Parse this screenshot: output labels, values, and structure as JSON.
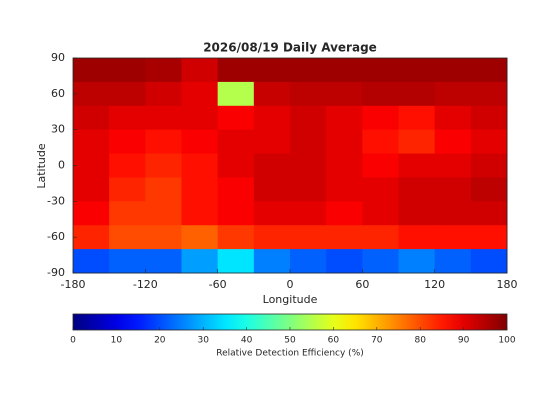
{
  "chart_data": {
    "type": "heatmap",
    "title": "2026/08/19 Daily Average",
    "x_label": "Longitude",
    "y_label": "Latitude",
    "xlim": [
      -180,
      180
    ],
    "xticks": [
      -180,
      -120,
      -60,
      0,
      60,
      120,
      180
    ],
    "ylim": [
      -90,
      90
    ],
    "yticks": [
      -90,
      -60,
      -30,
      0,
      30,
      60,
      90
    ],
    "lon_edges": [
      -180,
      -150,
      -120,
      -90,
      -60,
      -30,
      0,
      30,
      60,
      90,
      120,
      150,
      180
    ],
    "lat_edges": [
      90,
      70,
      50,
      30,
      10,
      -10,
      -30,
      -50,
      -70,
      -90
    ],
    "values": [
      [
        97,
        97,
        96,
        92,
        97,
        97,
        97,
        97,
        97,
        97,
        97,
        97
      ],
      [
        94,
        94,
        92,
        90,
        55,
        93,
        94,
        94,
        95,
        95,
        94,
        94
      ],
      [
        92,
        90,
        90,
        90,
        88,
        90,
        92,
        90,
        88,
        86,
        90,
        92
      ],
      [
        90,
        88,
        86,
        88,
        90,
        90,
        92,
        90,
        86,
        84,
        88,
        90
      ],
      [
        90,
        86,
        84,
        86,
        90,
        92,
        92,
        90,
        88,
        90,
        90,
        92
      ],
      [
        90,
        84,
        82,
        86,
        88,
        92,
        92,
        90,
        90,
        92,
        92,
        94
      ],
      [
        88,
        82,
        82,
        86,
        88,
        90,
        90,
        88,
        90,
        92,
        92,
        92
      ],
      [
        84,
        80,
        80,
        78,
        82,
        84,
        84,
        84,
        84,
        86,
        86,
        86
      ],
      [
        20,
        22,
        22,
        28,
        35,
        25,
        22,
        20,
        22,
        25,
        22,
        20
      ]
    ],
    "colormap": "jet",
    "colorbar": {
      "label": "Relative Detection Efficiency (%)",
      "clim": [
        0,
        100
      ],
      "ticks": [
        0,
        10,
        20,
        30,
        40,
        50,
        60,
        70,
        80,
        90,
        100
      ]
    }
  }
}
